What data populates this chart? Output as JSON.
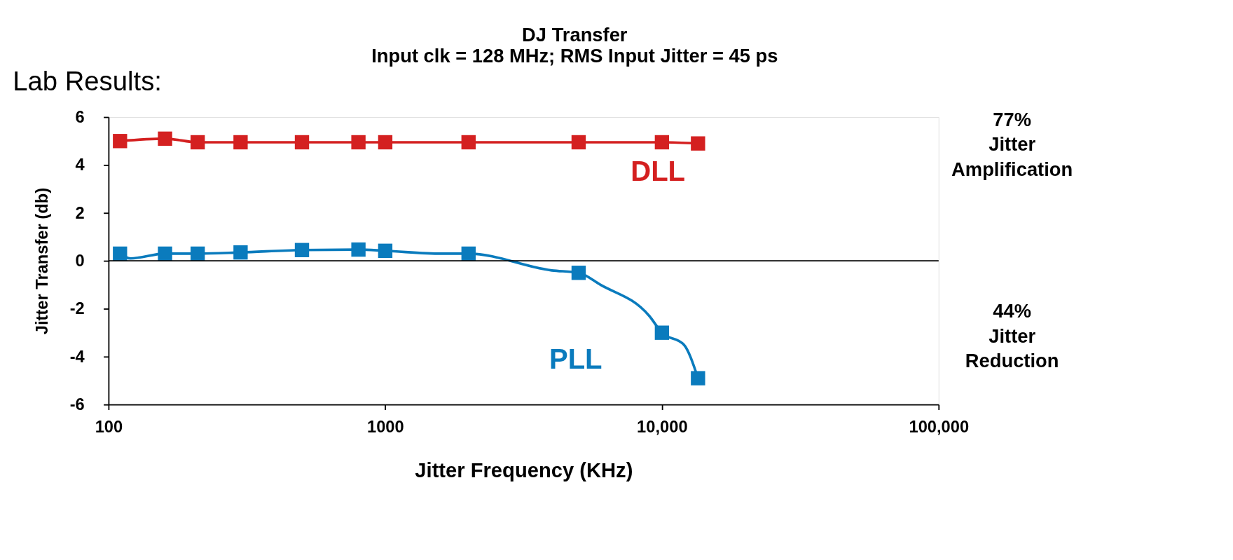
{
  "chart_data": {
    "type": "line",
    "title": "DJ Transfer",
    "subtitle": "Input clk = 128 MHz; RMS Input Jitter = 45 ps",
    "xlabel": "Jitter Frequency (KHz)",
    "ylabel": "Jitter Transfer (db)",
    "log": "x",
    "xlim": [
      100,
      100000
    ],
    "xticks": [
      100,
      1000,
      {
        "value": 10000,
        "label": "10,000"
      },
      {
        "value": 100000,
        "label": "100,000"
      }
    ],
    "ylim": [
      -6,
      6
    ],
    "yticks": [
      -6,
      -4,
      -2,
      0,
      2,
      4,
      6
    ],
    "grid": false,
    "line_style": "solid",
    "ref_lines": [
      {
        "axis": "y",
        "value": 0,
        "color": "#000000"
      }
    ],
    "series": [
      {
        "name": "DLL",
        "color": "#d42020",
        "type": "line",
        "marker": "square",
        "x": [
          110,
          160,
          210,
          300,
          500,
          800,
          1000,
          2000,
          5000,
          10000,
          13500
        ],
        "values": [
          5.0,
          5.1,
          4.95,
          4.95,
          4.95,
          4.95,
          4.95,
          4.95,
          4.95,
          4.95,
          4.9
        ]
      },
      {
        "name": "PLL",
        "color": "#0a7bbd",
        "type": "line",
        "marker": "none",
        "x": [
          110,
          120,
          160,
          210,
          300,
          500,
          800,
          1000,
          1600,
          2000,
          4000,
          5000,
          6000,
          9000,
          10000,
          12000,
          13500
        ],
        "values": [
          0.3,
          0.1,
          0.3,
          0.3,
          0.35,
          0.45,
          0.47,
          0.42,
          0.3,
          0.3,
          -0.4,
          -0.5,
          -1.0,
          -2.3,
          -3.0,
          -3.5,
          -4.9
        ]
      },
      {
        "color": "#0a7bbd",
        "type": "scatter",
        "marker": "square",
        "x": [
          110,
          160,
          210,
          300,
          500,
          800,
          1000,
          2000,
          5000,
          10000,
          13500
        ],
        "values": [
          0.3,
          0.3,
          0.3,
          0.35,
          0.45,
          0.47,
          0.42,
          0.3,
          -0.5,
          -3.0,
          -4.9
        ]
      }
    ],
    "annotations": [
      "Lab Results:",
      "77% Jitter Amplification",
      "44% Jitter Reduction"
    ]
  }
}
